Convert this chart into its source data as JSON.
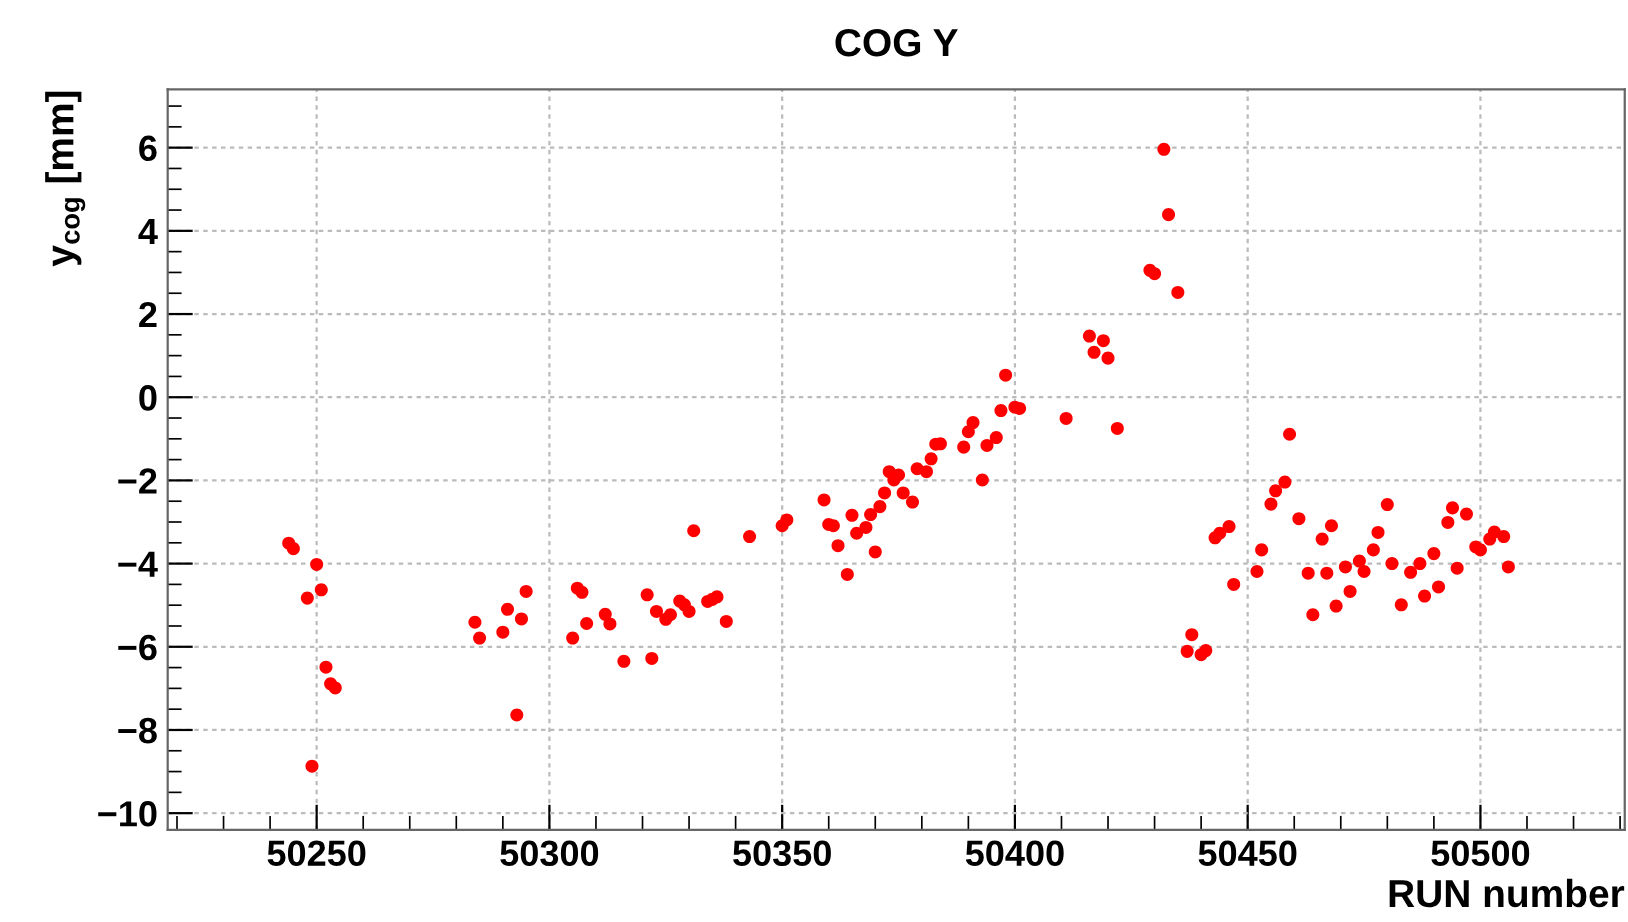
{
  "chart_data": {
    "type": "scatter",
    "title": "COG Y",
    "xlabel": "RUN number",
    "ylabel": "y$_{cog}$ [mm]",
    "x": [
      50244,
      50245,
      50250,
      50248,
      50251,
      50249,
      50252,
      50253,
      50254,
      50284,
      50285,
      50290,
      50291,
      50294,
      50295,
      50293,
      50305,
      50306,
      50307,
      50308,
      50312,
      50313,
      50316,
      50321,
      50322,
      50323,
      50325,
      50326,
      50328,
      50329,
      50330,
      50331,
      50334,
      50335,
      50336,
      50338,
      50343,
      50350,
      50351,
      50359,
      50360,
      50361,
      50362,
      50364,
      50365,
      50366,
      50368,
      50369,
      50370,
      50371,
      50372,
      50373,
      50374,
      50375,
      50376,
      50378,
      50379,
      50381,
      50382,
      50383,
      50384,
      50389,
      50390,
      50391,
      50393,
      50394,
      50396,
      50397,
      50398,
      50400,
      50401,
      50411,
      50416,
      50417,
      50419,
      50420,
      50422,
      50432,
      50433,
      50429,
      50430,
      50435,
      50437,
      50438,
      50440,
      50441,
      50443,
      50444,
      50446,
      50447,
      50452,
      50453,
      50455,
      50456,
      50458,
      50459,
      50461,
      50463,
      50464,
      50466,
      50467,
      50468,
      50469,
      50471,
      50472,
      50474,
      50475,
      50477,
      50478,
      50480,
      50481,
      50483,
      50485,
      50487,
      50488,
      50490,
      50491,
      50493,
      50494,
      50495,
      50497,
      50499,
      50500,
      50502,
      50503,
      50505,
      50506
    ],
    "series": [
      {
        "color": "#ff0000",
        "values": [
          -3.51,
          -3.64,
          -4.02,
          -4.83,
          -4.63,
          -8.87,
          -6.49,
          -6.89,
          -6.99,
          -5.41,
          -5.79,
          -5.65,
          -5.1,
          -5.33,
          -4.67,
          -7.64,
          -5.79,
          -4.59,
          -4.69,
          -5.44,
          -5.22,
          -5.45,
          -6.35,
          -4.75,
          -6.28,
          -5.15,
          -5.34,
          -5.23,
          -4.9,
          -4.99,
          -5.15,
          -3.21,
          -4.91,
          -4.86,
          -4.8,
          -5.39,
          -3.35,
          -3.09,
          -2.95,
          -2.47,
          -3.06,
          -3.09,
          -3.57,
          -4.26,
          -2.84,
          -3.27,
          -3.13,
          -2.82,
          -3.72,
          -2.63,
          -2.3,
          -1.79,
          -1.99,
          -1.87,
          -2.3,
          -2.52,
          -1.72,
          -1.79,
          -1.48,
          -1.13,
          -1.12,
          -1.2,
          -0.83,
          -0.61,
          -1.99,
          -1.16,
          -0.97,
          -0.32,
          0.53,
          -0.24,
          -0.27,
          -0.51,
          1.47,
          1.08,
          1.36,
          0.94,
          -0.75,
          5.96,
          4.39,
          3.05,
          2.97,
          2.52,
          -6.11,
          -5.71,
          -6.19,
          -6.09,
          -3.38,
          -3.27,
          -3.11,
          -4.5,
          -4.19,
          -3.67,
          -2.57,
          -2.25,
          -2.04,
          -0.89,
          -2.92,
          -4.23,
          -5.23,
          -3.41,
          -4.23,
          -3.09,
          -5.02,
          -4.08,
          -4.67,
          -3.94,
          -4.19,
          -3.67,
          -3.25,
          -2.58,
          -4.0,
          -4.99,
          -4.21,
          -4.0,
          -4.78,
          -3.76,
          -4.56,
          -3.01,
          -2.66,
          -4.11,
          -2.81,
          -3.6,
          -3.67,
          -3.41,
          -3.24,
          -3.35,
          -4.08
        ]
      }
    ],
    "xlim": [
      50218,
      50531
    ],
    "ylim": [
      -10.4,
      7.4
    ],
    "xticks": [
      50250,
      50300,
      50350,
      50400,
      50450,
      50500
    ],
    "yticks": [
      -10,
      -8,
      -6,
      -4,
      -2,
      0,
      2,
      4,
      6
    ],
    "grid": true,
    "marker": "circle"
  }
}
